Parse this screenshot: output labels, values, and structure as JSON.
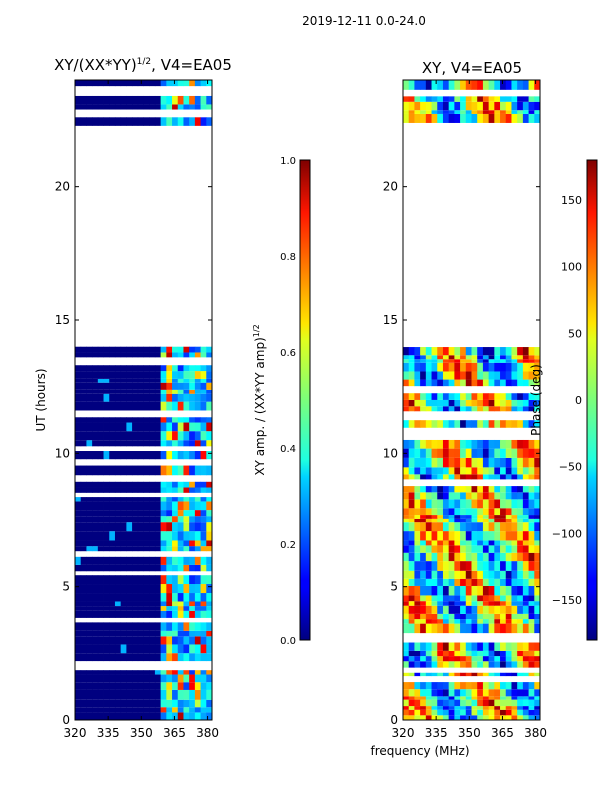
{
  "figure": {
    "suptitle": "2019-12-11 0.0-24.0",
    "shared_xlabel": "frequency (MHz)"
  },
  "chart_data": [
    {
      "type": "heatmap",
      "title_main": "XY/(XX*YY)",
      "title_exp": "1/2",
      "title_suffix": ", V4=EA05",
      "xlabel": "",
      "ylabel": "UT (hours)",
      "xlim": [
        320,
        382
      ],
      "ylim": [
        0,
        24
      ],
      "xticks": [
        320,
        335,
        350,
        365,
        380
      ],
      "yticks": [
        0,
        5,
        10,
        15,
        20
      ],
      "data_gap_hours": [
        14.0,
        22.4
      ],
      "active_band_mhz": [
        360,
        382
      ],
      "colorbar": {
        "label_main": "XY amp. / (XX*YY amp)",
        "label_exp": "1/2",
        "range": [
          0.0,
          1.0
        ],
        "ticks": [
          "0.0",
          "0.2",
          "0.4",
          "0.6",
          "0.8",
          "1.0"
        ],
        "colormap": "jet"
      }
    },
    {
      "type": "heatmap",
      "title": "XY, V4=EA05",
      "xlabel": "",
      "ylabel": "",
      "xlim": [
        320,
        382
      ],
      "ylim": [
        0,
        24
      ],
      "xticks": [
        320,
        335,
        350,
        365,
        380
      ],
      "yticks": [
        0,
        5,
        10,
        15,
        20
      ],
      "data_gap_hours": [
        14.0,
        22.4
      ],
      "colorbar": {
        "label": "Phase (deg)",
        "range": [
          -180,
          180
        ],
        "ticks": [
          "150",
          "100",
          "50",
          "0",
          "−50",
          "−100",
          "−150"
        ],
        "colormap": "jet"
      }
    }
  ],
  "colors": {
    "low": "#00007f",
    "background": "#ffffff",
    "axis": "#000000"
  }
}
